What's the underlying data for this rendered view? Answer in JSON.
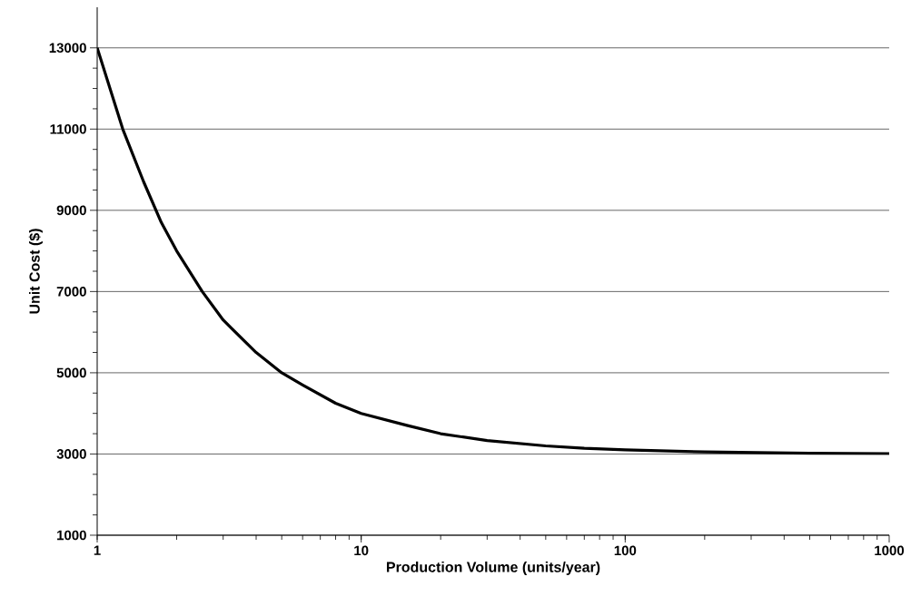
{
  "chart_data": {
    "type": "line",
    "xlabel": "Production Volume (units/year)",
    "ylabel": "Unit Cost ($)",
    "log": "x",
    "x": [
      1,
      1.25,
      1.5,
      1.75,
      2,
      2.5,
      3,
      4,
      5,
      6,
      8,
      10,
      15,
      20,
      30,
      50,
      70,
      100,
      200,
      500,
      1000
    ],
    "series": [
      {
        "color": "#000000",
        "values": [
          13000,
          11000,
          9700,
          8700,
          8000,
          7000,
          6300,
          5500,
          5000,
          4700,
          4250,
          4000,
          3700,
          3500,
          3330,
          3200,
          3140,
          3100,
          3050,
          3020,
          3010
        ]
      }
    ],
    "xlim": [
      1,
      1000
    ],
    "xticks": [
      1,
      10,
      100,
      1000
    ],
    "ylim": [
      1000,
      14000
    ],
    "yticks": [
      1000,
      3000,
      5000,
      7000,
      9000,
      11000,
      13000
    ],
    "grid": "y",
    "marker": "none",
    "line_style": "solid"
  }
}
